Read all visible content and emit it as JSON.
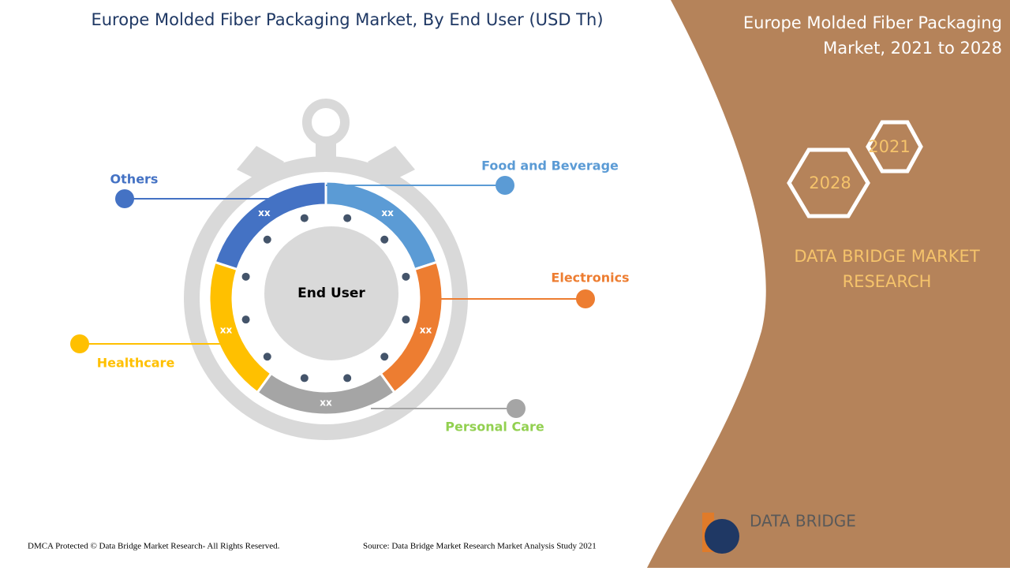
{
  "title": "Europe Molded Fiber Packaging Market, By End User (USD Th)",
  "side_title": "Europe Molded Fiber Packaging Market, 2021 to 2028",
  "years": [
    "2021",
    "2028"
  ],
  "brand": "DATA BRIDGE MARKET RESEARCH",
  "center_label": "End User",
  "segments": [
    {
      "label": "Food and Beverage",
      "value": "xx",
      "color": "#5b9bd5"
    },
    {
      "label": "Electronics",
      "value": "xx",
      "color": "#ed7d31"
    },
    {
      "label": "Personal Care",
      "value": "xx",
      "color": "#a5a5a5"
    },
    {
      "label": "Healthcare",
      "value": "xx",
      "color": "#ffc000"
    },
    {
      "label": "Others",
      "value": "xx",
      "color": "#4472c4"
    }
  ],
  "footer": {
    "left": "DMCA Protected © Data Bridge Market Research- All Rights Reserved.",
    "right": "Source: Data Bridge Market Research Market Analysis Study 2021"
  },
  "logo": "DATA BRIDGE"
}
